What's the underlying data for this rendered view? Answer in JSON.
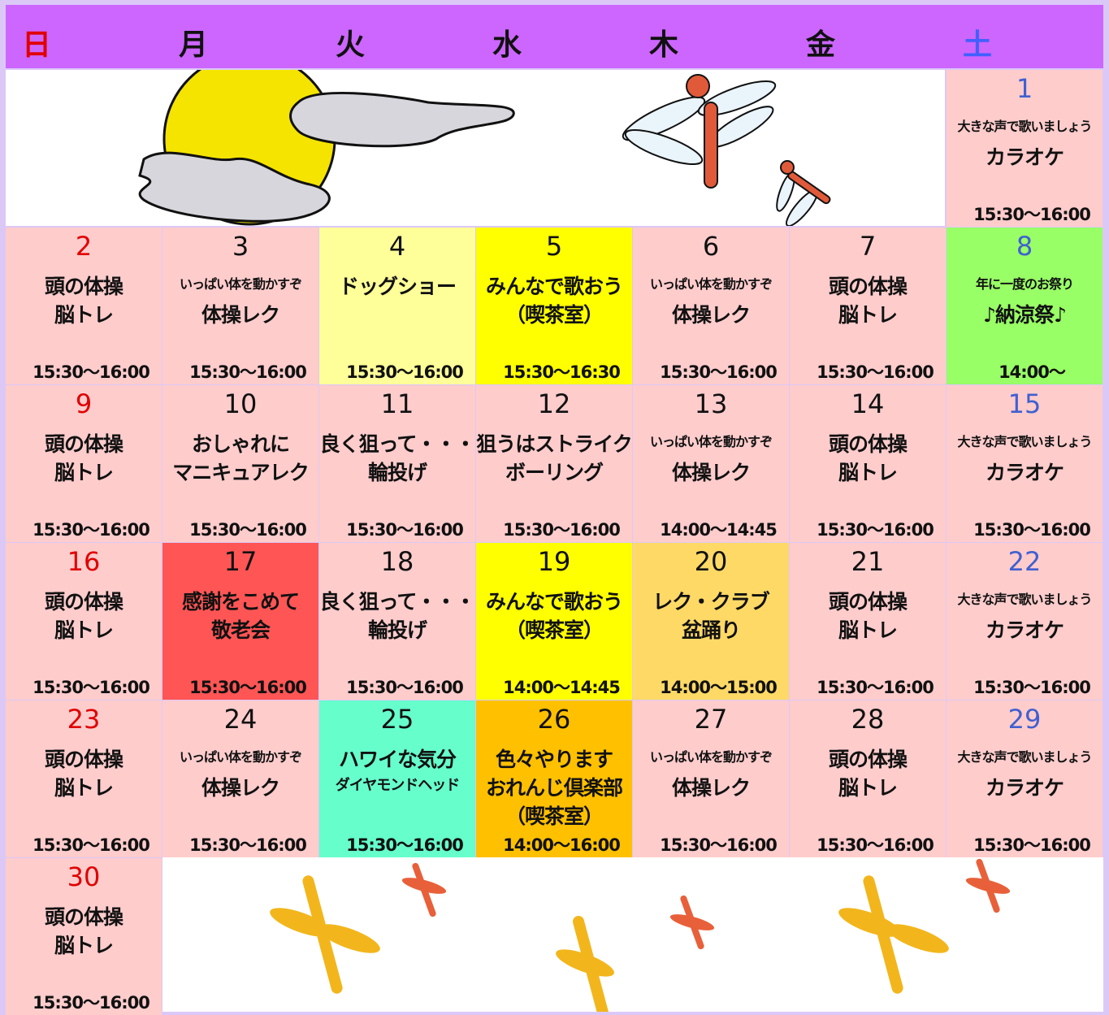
{
  "header": {
    "days": [
      "日",
      "月",
      "火",
      "水",
      "木",
      "金",
      "土"
    ]
  },
  "cells": [
    {
      "day": "1",
      "note": "大きな声で歌いましょう",
      "lines": [
        "カラオケ"
      ],
      "time": "15:30〜16:00",
      "color": "#ffcccc"
    },
    {
      "day": "2",
      "lines": [
        "頭の体操",
        "脳トレ"
      ],
      "time": "15:30〜16:00",
      "color": "#ffcccc"
    },
    {
      "day": "3",
      "note": "いっぱい体を動かすぞ",
      "lines": [
        "体操レク"
      ],
      "time": "15:30〜16:00",
      "color": "#ffcccc"
    },
    {
      "day": "4",
      "lines": [
        "ドッグショー"
      ],
      "time": "15:30〜16:00",
      "color": "#ffff99"
    },
    {
      "day": "5",
      "lines": [
        "みんなで歌おう",
        "（喫茶室）"
      ],
      "time": "15:30〜16:30",
      "color": "#ffff00"
    },
    {
      "day": "6",
      "note": "いっぱい体を動かすぞ",
      "lines": [
        "体操レク"
      ],
      "time": "15:30〜16:00",
      "color": "#ffcccc"
    },
    {
      "day": "7",
      "lines": [
        "頭の体操",
        "脳トレ"
      ],
      "time": "15:30〜16:00",
      "color": "#ffcccc"
    },
    {
      "day": "8",
      "note": "年に一度のお祭り",
      "lines": [
        "♪納涼祭♪"
      ],
      "time": "14:00〜",
      "color": "#99ff66"
    },
    {
      "day": "9",
      "lines": [
        "頭の体操",
        "脳トレ"
      ],
      "time": "15:30〜16:00",
      "color": "#ffcccc"
    },
    {
      "day": "10",
      "lines": [
        "おしゃれに",
        "マニキュアレク"
      ],
      "time": "15:30〜16:00",
      "color": "#ffcccc"
    },
    {
      "day": "11",
      "lines": [
        "良く狙って・・・",
        "輪投げ"
      ],
      "time": "15:30〜16:00",
      "color": "#ffcccc"
    },
    {
      "day": "12",
      "lines": [
        "狙うはストライク",
        "ボーリング"
      ],
      "time": "15:30〜16:00",
      "color": "#ffcccc"
    },
    {
      "day": "13",
      "note": "いっぱい体を動かすぞ",
      "lines": [
        "体操レク"
      ],
      "time": "14:00〜14:45",
      "color": "#ffcccc"
    },
    {
      "day": "14",
      "lines": [
        "頭の体操",
        "脳トレ"
      ],
      "time": "15:30〜16:00",
      "color": "#ffcccc"
    },
    {
      "day": "15",
      "note": "大きな声で歌いましょう",
      "lines": [
        "カラオケ"
      ],
      "time": "15:30〜16:00",
      "color": "#ffcccc"
    },
    {
      "day": "16",
      "lines": [
        "頭の体操",
        "脳トレ"
      ],
      "time": "15:30〜16:00",
      "color": "#ffcccc"
    },
    {
      "day": "17",
      "lines": [
        "感謝をこめて",
        "敬老会"
      ],
      "time": "15:30〜16:00",
      "color": "#ff5555"
    },
    {
      "day": "18",
      "lines": [
        "良く狙って・・・",
        "輪投げ"
      ],
      "time": "15:30〜16:00",
      "color": "#ffcccc"
    },
    {
      "day": "19",
      "lines": [
        "みんなで歌おう",
        "（喫茶室）"
      ],
      "time": "14:00〜14:45",
      "color": "#ffff00"
    },
    {
      "day": "20",
      "lines": [
        "レク・クラブ",
        "盆踊り"
      ],
      "time": "14:00〜15:00",
      "color": "#ffd966"
    },
    {
      "day": "21",
      "lines": [
        "頭の体操",
        "脳トレ"
      ],
      "time": "15:30〜16:00",
      "color": "#ffcccc"
    },
    {
      "day": "22",
      "note": "大きな声で歌いましょう",
      "lines": [
        "カラオケ"
      ],
      "time": "15:30〜16:00",
      "color": "#ffcccc"
    },
    {
      "day": "23",
      "lines": [
        "頭の体操",
        "脳トレ"
      ],
      "time": "15:30〜16:00",
      "color": "#ffcccc"
    },
    {
      "day": "24",
      "note": "いっぱい体を動かすぞ",
      "lines": [
        "体操レク"
      ],
      "time": "15:30〜16:00",
      "color": "#ffcccc"
    },
    {
      "day": "25",
      "lines": [
        "ハワイな気分"
      ],
      "sub": "ダイヤモンドヘッド",
      "time": "15:30〜16:00",
      "color": "#66ffcc"
    },
    {
      "day": "26",
      "lines": [
        "色々やります",
        "おれんじ倶楽部",
        "（喫茶室）"
      ],
      "time": "14:00〜16:00",
      "color": "#ffc000"
    },
    {
      "day": "27",
      "note": "いっぱい体を動かすぞ",
      "lines": [
        "体操レク"
      ],
      "time": "15:30〜16:00",
      "color": "#ffcccc"
    },
    {
      "day": "28",
      "lines": [
        "頭の体操",
        "脳トレ"
      ],
      "time": "15:30〜16:00",
      "color": "#ffcccc"
    },
    {
      "day": "29",
      "note": "大きな声で歌いましょう",
      "lines": [
        "カラオケ"
      ],
      "time": "15:30〜16:00",
      "color": "#ffcccc"
    },
    {
      "day": "30",
      "lines": [
        "頭の体操",
        "脳トレ"
      ],
      "time": "15:30〜16:00",
      "color": "#ffcccc"
    }
  ]
}
